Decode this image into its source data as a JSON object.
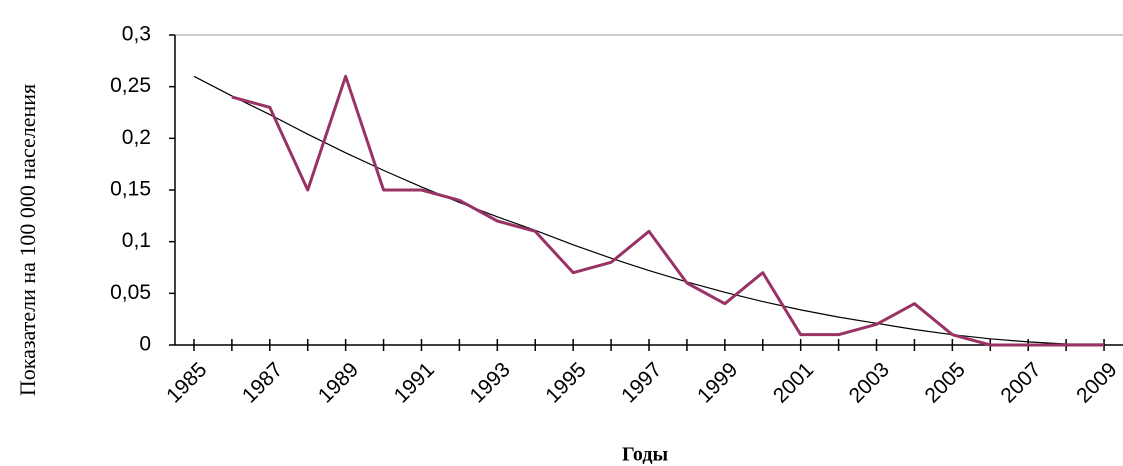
{
  "chart_data": {
    "type": "line",
    "y_label": "Показатели на 100 000 населения",
    "x_label": "Годы",
    "x": [
      1985,
      1986,
      1987,
      1988,
      1989,
      1990,
      1991,
      1992,
      1993,
      1994,
      1995,
      1996,
      1997,
      1998,
      1999,
      2000,
      2001,
      2002,
      2003,
      2004,
      2005,
      2006,
      2007,
      2008,
      2009
    ],
    "xlim": [
      1984.5,
      2009.5
    ],
    "xticks": [
      1985,
      1987,
      1989,
      1991,
      1993,
      1995,
      1997,
      1999,
      2001,
      2003,
      2005,
      2007,
      2009
    ],
    "ylim": [
      0,
      0.3
    ],
    "yticks": [
      0,
      {
        "value": 0.05,
        "label": "0,05"
      },
      {
        "value": 0.1,
        "label": "0,1"
      },
      {
        "value": 0.15,
        "label": "0,15"
      },
      {
        "value": 0.2,
        "label": "0,2"
      },
      {
        "value": 0.25,
        "label": "0,25"
      },
      {
        "value": 0.3,
        "label": "0,3"
      }
    ],
    "grid": false,
    "series": [
      {
        "color": "#993366",
        "values": [
          null,
          0.24,
          0.23,
          0.15,
          0.26,
          0.15,
          0.15,
          0.14,
          0.12,
          0.11,
          0.07,
          0.08,
          0.11,
          0.06,
          0.04,
          0.07,
          0.01,
          0.01,
          0.02,
          0.04,
          0.01,
          0,
          0,
          0,
          0
        ]
      },
      {
        "color": "#000000",
        "values": [
          0.26,
          0.241,
          0.223,
          0.204,
          0.186,
          0.169,
          0.153,
          0.138,
          0.124,
          0.111,
          0.097,
          0.084,
          0.072,
          0.061,
          0.051,
          0.042,
          0.034,
          0.027,
          0.021,
          0.015,
          0.01,
          0.006,
          0.003,
          0.001,
          0.001
        ]
      }
    ]
  }
}
